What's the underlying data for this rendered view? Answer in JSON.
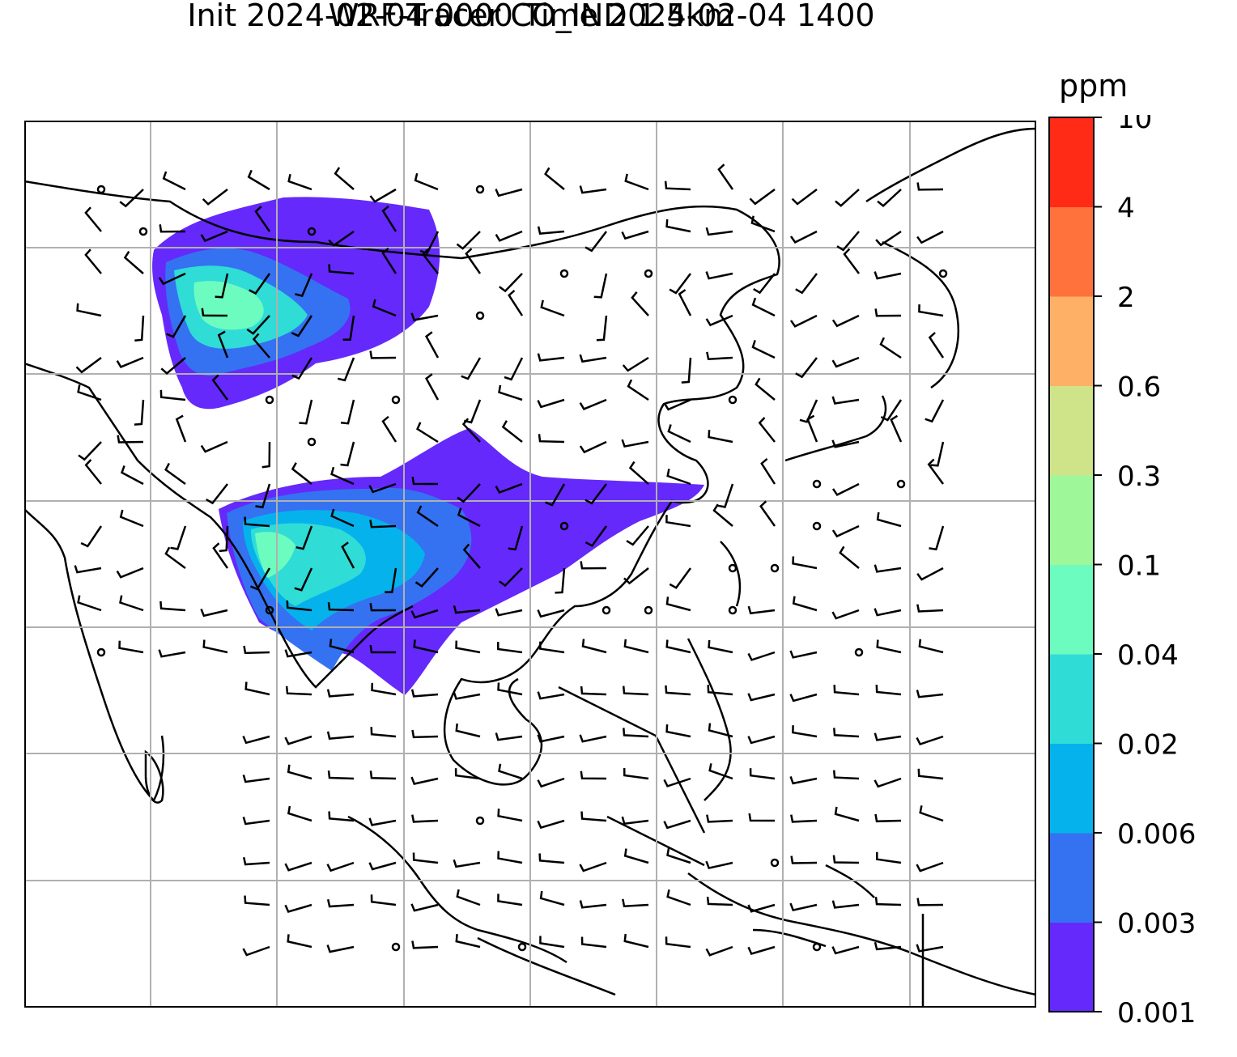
{
  "title_line1": "WRF-Tracer CO_IND 1.5km",
  "title_line2": "Init 2024-02-04 0000 Time 2024-02-04 1400",
  "colorbar": {
    "unit": "ppm",
    "levels": [
      "0.001",
      "0.003",
      "0.006",
      "0.02",
      "0.04",
      "0.1",
      "0.3",
      "0.6",
      "2",
      "4",
      "10"
    ],
    "colors": [
      "#6529fb",
      "#3472f1",
      "#06b2ec",
      "#2fdcd6",
      "#6dfcc0",
      "#9ef89a",
      "#cfe389",
      "#feb066",
      "#ff723b",
      "#ff2b17"
    ]
  },
  "map": {
    "gridlines": true,
    "grid_color": "#b0b0b0",
    "coast_color": "#000000",
    "wind_barbs": "black barbs across domain; calm circles where weak",
    "plumes": [
      {
        "region": "northwest China / Mongolia",
        "max_level": "0.1"
      },
      {
        "region": "Bangladesh / Myanmar / south China",
        "max_level": "0.1"
      }
    ]
  }
}
